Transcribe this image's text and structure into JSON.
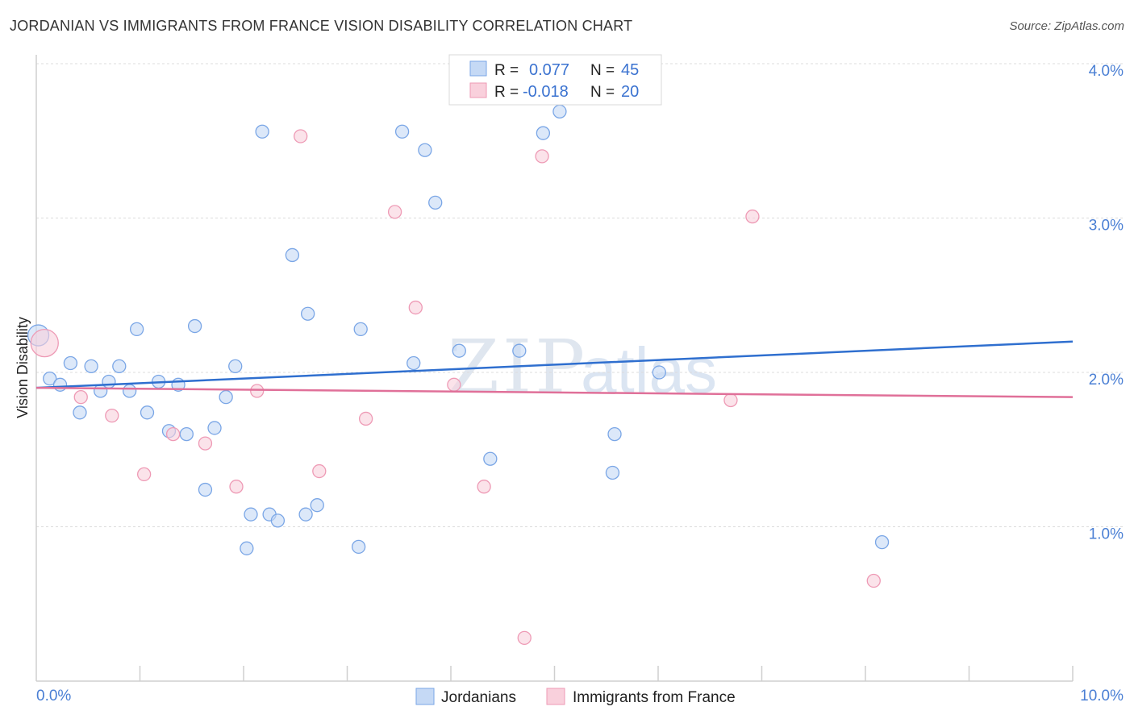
{
  "header": {
    "title": "JORDANIAN VS IMMIGRANTS FROM FRANCE VISION DISABILITY CORRELATION CHART",
    "source": "Source: ZipAtlas.com"
  },
  "watermark": "ZIPatlas",
  "chart_data": {
    "type": "scatter",
    "title": "JORDANIAN VS IMMIGRANTS FROM FRANCE VISION DISABILITY CORRELATION CHART",
    "ylabel": "Vision Disability",
    "xlabel": "",
    "xlim": [
      0,
      10
    ],
    "ylim": [
      0,
      4
    ],
    "x_tick_labels": [
      "0.0%",
      "10.0%"
    ],
    "y_ticks": [
      {
        "value": 1,
        "label": "1.0%"
      },
      {
        "value": 2,
        "label": "2.0%"
      },
      {
        "value": 3,
        "label": "3.0%"
      },
      {
        "value": 4,
        "label": "4.0%"
      }
    ],
    "legend_stats": [
      {
        "r_label": "R =",
        "r_value": "0.077",
        "n_label": "N =",
        "n_value": "45"
      },
      {
        "r_label": "R =",
        "r_value": "-0.018",
        "n_label": "N =",
        "n_value": "20"
      }
    ],
    "series": [
      {
        "name": "Jordanians",
        "color": "#7aa6e6",
        "fill": "#c5d9f5",
        "line_color": "#2f6fcf",
        "trend": {
          "x": [
            0,
            10
          ],
          "y": [
            1.9,
            2.2
          ]
        },
        "points": [
          [
            0.02,
            2.24
          ],
          [
            0.13,
            1.96
          ],
          [
            0.23,
            1.92
          ],
          [
            0.33,
            2.06
          ],
          [
            0.42,
            1.74
          ],
          [
            0.53,
            2.04
          ],
          [
            0.62,
            1.88
          ],
          [
            0.7,
            1.94
          ],
          [
            0.8,
            2.04
          ],
          [
            0.9,
            1.88
          ],
          [
            0.97,
            2.28
          ],
          [
            1.07,
            1.74
          ],
          [
            1.18,
            1.94
          ],
          [
            1.28,
            1.62
          ],
          [
            1.37,
            1.92
          ],
          [
            1.45,
            1.6
          ],
          [
            1.53,
            2.3
          ],
          [
            1.63,
            1.24
          ],
          [
            1.72,
            1.64
          ],
          [
            1.92,
            2.04
          ],
          [
            1.83,
            1.84
          ],
          [
            2.03,
            0.86
          ],
          [
            2.07,
            1.08
          ],
          [
            2.18,
            3.56
          ],
          [
            2.25,
            1.08
          ],
          [
            2.33,
            1.04
          ],
          [
            2.47,
            2.76
          ],
          [
            2.6,
            1.08
          ],
          [
            2.62,
            2.38
          ],
          [
            2.71,
            1.14
          ],
          [
            3.11,
            0.87
          ],
          [
            3.13,
            2.28
          ],
          [
            3.53,
            3.56
          ],
          [
            3.64,
            2.06
          ],
          [
            3.75,
            3.44
          ],
          [
            3.85,
            3.1
          ],
          [
            4.08,
            2.14
          ],
          [
            4.38,
            1.44
          ],
          [
            4.66,
            2.14
          ],
          [
            4.89,
            3.55
          ],
          [
            5.05,
            3.69
          ],
          [
            5.56,
            1.35
          ],
          [
            5.58,
            1.6
          ],
          [
            6.01,
            2.0
          ],
          [
            8.16,
            0.9
          ]
        ]
      },
      {
        "name": "Immigrants from France",
        "color": "#ee9ab5",
        "fill": "#f9d0dc",
        "line_color": "#e07099",
        "trend": {
          "x": [
            0,
            10
          ],
          "y": [
            1.9,
            1.84
          ]
        },
        "points": [
          [
            0.08,
            2.19
          ],
          [
            0.43,
            1.84
          ],
          [
            0.73,
            1.72
          ],
          [
            1.04,
            1.34
          ],
          [
            1.32,
            1.6
          ],
          [
            1.63,
            1.54
          ],
          [
            1.93,
            1.26
          ],
          [
            2.13,
            1.88
          ],
          [
            2.55,
            3.53
          ],
          [
            2.73,
            1.36
          ],
          [
            3.18,
            1.7
          ],
          [
            3.46,
            3.04
          ],
          [
            3.66,
            2.42
          ],
          [
            4.03,
            1.92
          ],
          [
            4.32,
            1.26
          ],
          [
            4.71,
            0.28
          ],
          [
            4.88,
            3.4
          ],
          [
            6.7,
            1.82
          ],
          [
            6.91,
            3.01
          ],
          [
            8.08,
            0.65
          ]
        ]
      }
    ]
  }
}
